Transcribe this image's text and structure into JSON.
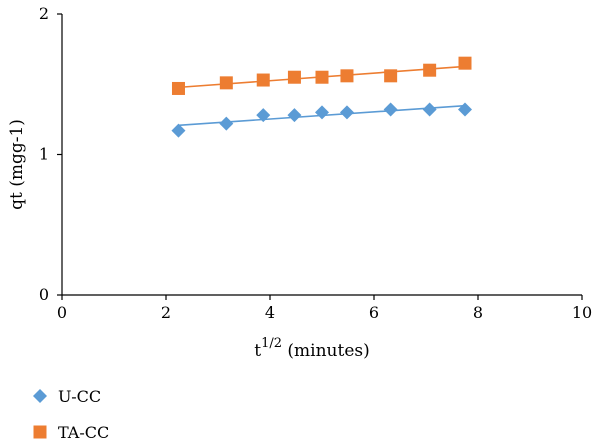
{
  "chart_data": {
    "type": "scatter",
    "xlabel": {
      "base": "t",
      "superscript": "1/2",
      "rest": " (minutes)"
    },
    "ylabel": "qt (mgg-1)",
    "xlim": [
      0,
      10
    ],
    "ylim": [
      0,
      2
    ],
    "xticks": [
      0,
      2,
      4,
      6,
      8,
      10
    ],
    "yticks": [
      0,
      1,
      2
    ],
    "grid": false,
    "legend_position": "bottom-left",
    "series": [
      {
        "name": "U-CC",
        "marker": "diamond",
        "color": "#5B9BD5",
        "x": [
          2.24,
          3.16,
          3.87,
          4.47,
          5.0,
          5.48,
          6.32,
          7.07,
          7.75
        ],
        "y": [
          1.17,
          1.22,
          1.28,
          1.28,
          1.3,
          1.3,
          1.32,
          1.32,
          1.32
        ],
        "trendline": true
      },
      {
        "name": "TA-CC",
        "marker": "square",
        "color": "#ED7D31",
        "x": [
          2.24,
          3.16,
          3.87,
          4.47,
          5.0,
          5.48,
          6.32,
          7.07,
          7.75
        ],
        "y": [
          1.47,
          1.51,
          1.53,
          1.55,
          1.55,
          1.56,
          1.56,
          1.6,
          1.65
        ],
        "trendline": true
      }
    ]
  }
}
